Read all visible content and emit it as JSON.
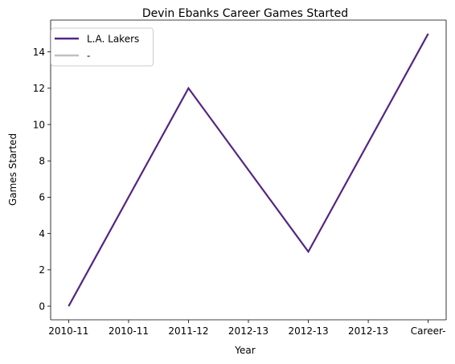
{
  "chart_data": {
    "type": "line",
    "title": "Devin Ebanks Career Games Started",
    "xlabel": "Year",
    "ylabel": "Games Started",
    "categories": [
      "2010-11",
      "2010-11",
      "2011-12",
      "2012-13",
      "2012-13",
      "2012-13",
      "Career-"
    ],
    "ylim": [
      -0.75,
      15.75
    ],
    "yticks": [
      0,
      2,
      4,
      6,
      8,
      10,
      12,
      14
    ],
    "grid": false,
    "legend_position": "top-left",
    "series": [
      {
        "name": "L.A. Lakers",
        "color": "#552583",
        "points": [
          {
            "x": "2010-11",
            "index": 0,
            "y": 0
          },
          {
            "x": "2011-12",
            "index": 2,
            "y": 12
          },
          {
            "x": "2012-13",
            "index": 4,
            "y": 3
          },
          {
            "x": "Career-",
            "index": 6,
            "y": 15
          }
        ]
      },
      {
        "name": "-",
        "color": "#c0c0c0",
        "points": []
      }
    ]
  }
}
